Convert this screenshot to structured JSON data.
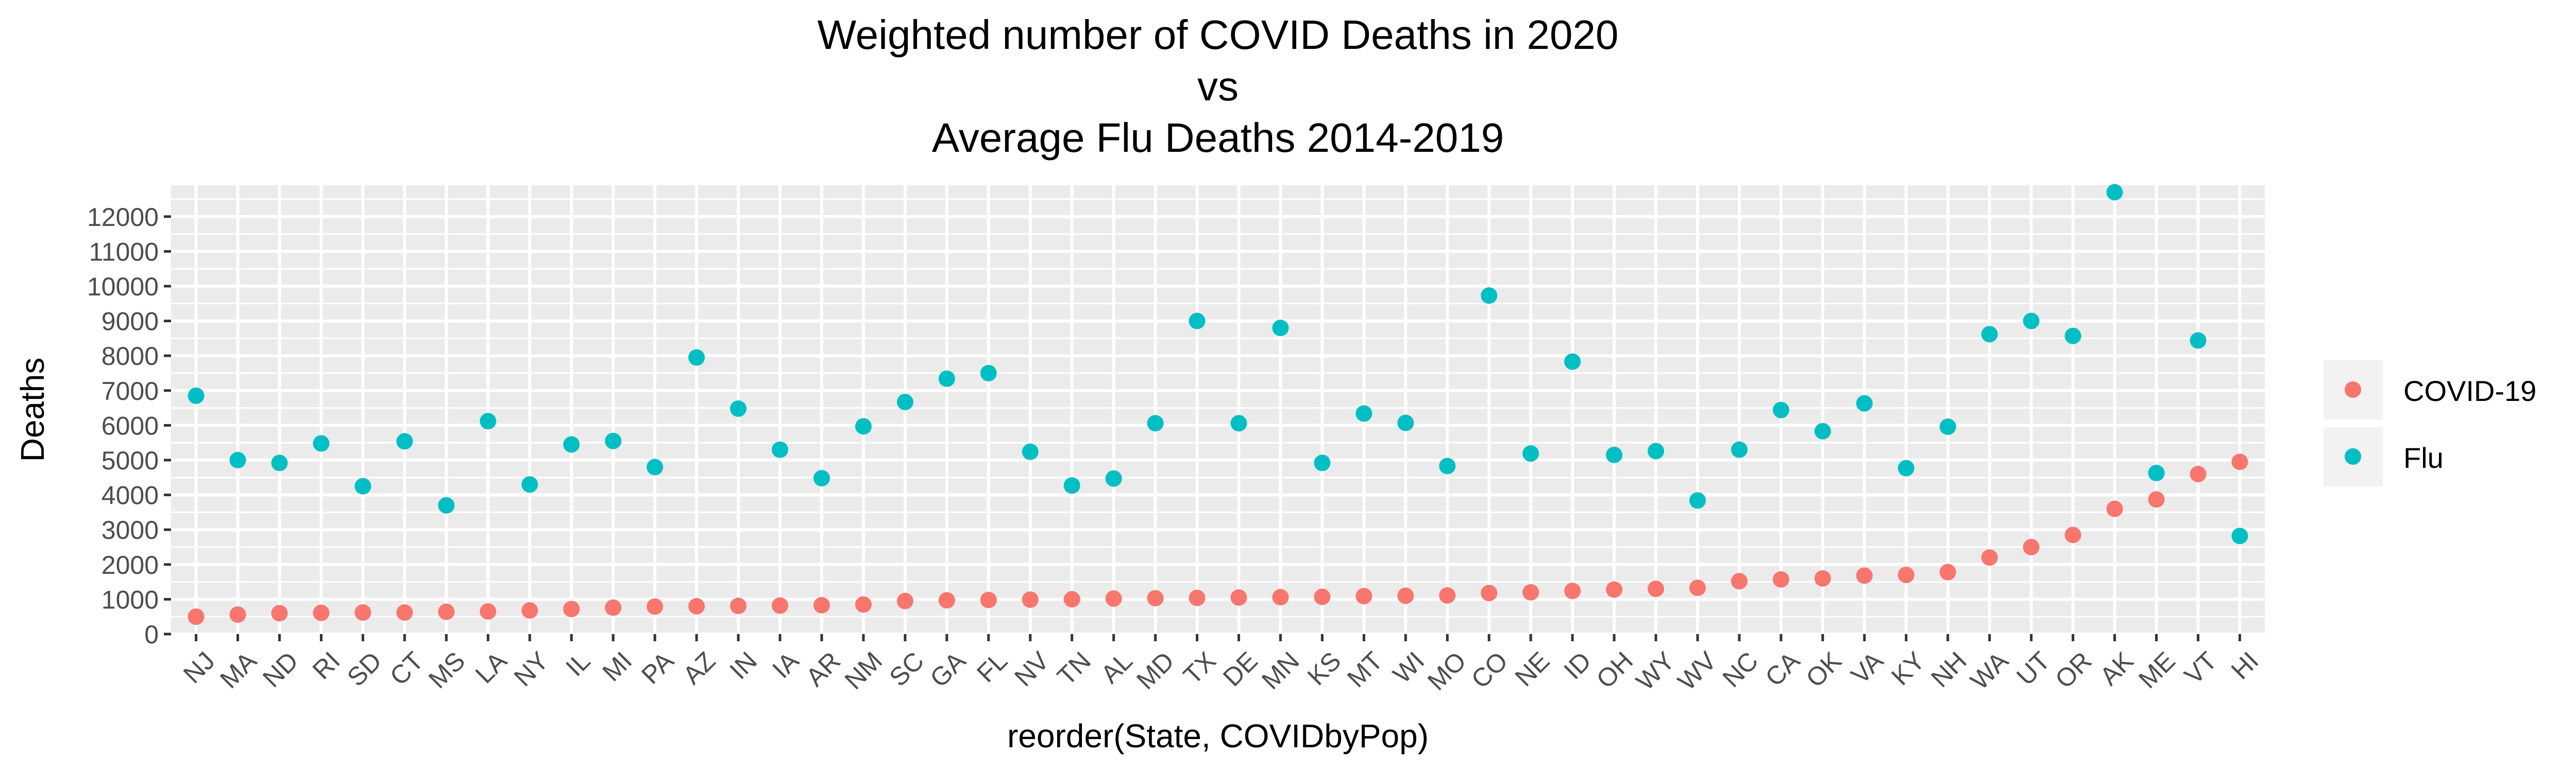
{
  "chart_data": {
    "type": "scatter",
    "title": [
      "Weighted number of COVID Deaths in 2020",
      "vs",
      "Average Flu Deaths 2014-2019"
    ],
    "xlabel": "reorder(State, COVIDbyPop)",
    "ylabel": "Deaths",
    "ylim": [
      0,
      12900
    ],
    "yticks": [
      0,
      1000,
      2000,
      3000,
      4000,
      5000,
      6000,
      7000,
      8000,
      9000,
      10000,
      11000,
      12000
    ],
    "grid": true,
    "legend_position": "right",
    "categories": [
      "NJ",
      "MA",
      "ND",
      "RI",
      "SD",
      "CT",
      "MS",
      "LA",
      "NY",
      "IL",
      "MI",
      "PA",
      "AZ",
      "IN",
      "IA",
      "AR",
      "NM",
      "SC",
      "GA",
      "FL",
      "NV",
      "TN",
      "AL",
      "MD",
      "TX",
      "DE",
      "MN",
      "KS",
      "MT",
      "WI",
      "MO",
      "CO",
      "NE",
      "ID",
      "OH",
      "WY",
      "WV",
      "NC",
      "CA",
      "OK",
      "VA",
      "KY",
      "NH",
      "WA",
      "UT",
      "OR",
      "AK",
      "ME",
      "VT",
      "HI"
    ],
    "series": [
      {
        "name": "COVID-19",
        "color": "#F8766D",
        "values": [
          500,
          560,
          600,
          610,
          620,
          620,
          640,
          650,
          680,
          720,
          760,
          790,
          800,
          810,
          820,
          830,
          850,
          950,
          970,
          980,
          990,
          1000,
          1020,
          1030,
          1040,
          1050,
          1060,
          1070,
          1090,
          1100,
          1110,
          1180,
          1200,
          1240,
          1280,
          1300,
          1330,
          1520,
          1570,
          1600,
          1680,
          1700,
          1780,
          2200,
          2500,
          2850,
          3600,
          3870,
          4600,
          4950
        ]
      },
      {
        "name": "Flu",
        "color": "#00BFC4",
        "values": [
          6850,
          5000,
          4920,
          5480,
          4250,
          5540,
          3700,
          6120,
          4300,
          5450,
          5550,
          4800,
          7950,
          6480,
          5300,
          4480,
          5970,
          6670,
          7340,
          7500,
          5240,
          4270,
          4470,
          6060,
          9000,
          6060,
          8800,
          4920,
          6340,
          6070,
          4830,
          9730,
          5190,
          7830,
          5150,
          5260,
          3840,
          5300,
          6440,
          5830,
          6630,
          4770,
          5960,
          8620,
          9000,
          8570,
          12700,
          4630,
          8440,
          2820
        ]
      }
    ]
  }
}
